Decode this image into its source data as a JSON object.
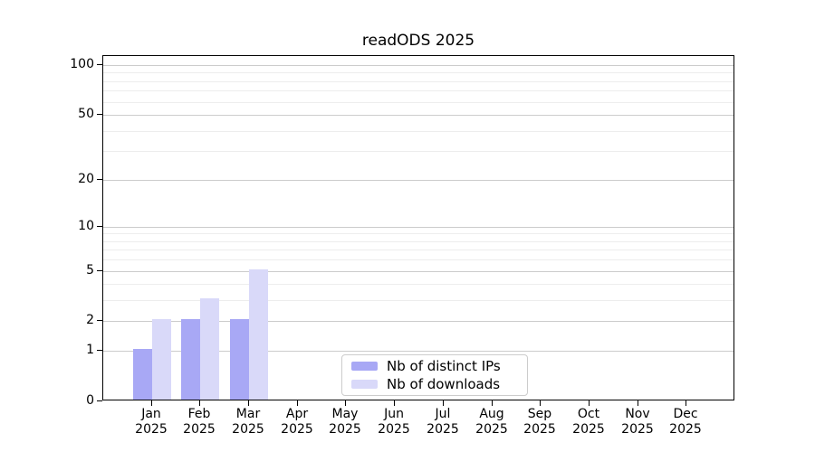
{
  "chart_data": {
    "type": "bar",
    "title": "readODS 2025",
    "year_label": "2025",
    "categories": [
      "Jan",
      "Feb",
      "Mar",
      "Apr",
      "May",
      "Jun",
      "Jul",
      "Aug",
      "Sep",
      "Oct",
      "Nov",
      "Dec"
    ],
    "series": [
      {
        "name": "Nb of distinct IPs",
        "color": "#a8a8f5",
        "values": [
          1,
          2,
          2,
          0,
          0,
          0,
          0,
          0,
          0,
          0,
          0,
          0
        ]
      },
      {
        "name": "Nb of downloads",
        "color": "#d9d9f9",
        "values": [
          2,
          3,
          5,
          0,
          0,
          0,
          0,
          0,
          0,
          0,
          0,
          0
        ]
      }
    ],
    "y_scale": "log1p",
    "y_tick_labels": [
      0,
      1,
      2,
      5,
      10,
      20,
      50,
      100
    ],
    "y_minor_ticks": [
      3,
      4,
      6,
      7,
      8,
      9,
      30,
      40,
      60,
      70,
      80,
      90
    ],
    "ylim": [
      0,
      113
    ],
    "grid": true,
    "legend_position": "bottom-center"
  },
  "colors": {
    "major_grid": "#cccccc",
    "minor_grid": "#ededed",
    "axis": "#000000",
    "background": "#ffffff",
    "legend_border": "#cccccc"
  }
}
